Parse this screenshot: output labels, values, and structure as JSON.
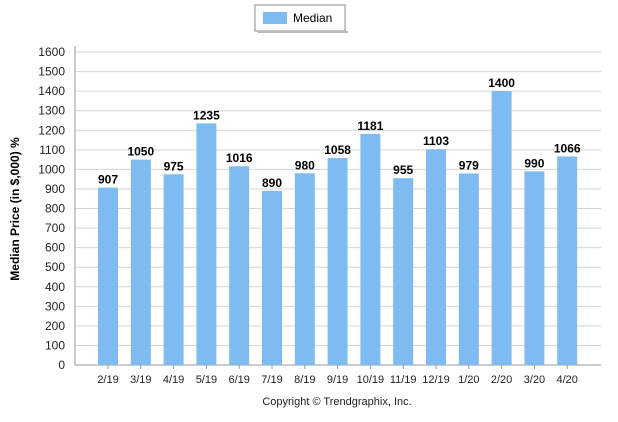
{
  "chart_data": {
    "type": "bar",
    "categories": [
      "2/19",
      "3/19",
      "4/19",
      "5/19",
      "6/19",
      "7/19",
      "8/19",
      "9/19",
      "10/19",
      "11/19",
      "12/19",
      "1/20",
      "2/20",
      "3/20",
      "4/20"
    ],
    "series": [
      {
        "name": "Median",
        "values": [
          907,
          1050,
          975,
          1235,
          1016,
          890,
          980,
          1058,
          1181,
          955,
          1103,
          979,
          1400,
          990,
          1066
        ]
      }
    ],
    "xlabel": "",
    "ylabel": "Median Price (in $,000) %",
    "ylim": [
      0,
      1600
    ],
    "ytick_step": 100,
    "grid": true,
    "legend_position": "top-center",
    "bar_color": "#7ebbf0",
    "copyright": "Copyright © Trendgraphix, Inc."
  }
}
